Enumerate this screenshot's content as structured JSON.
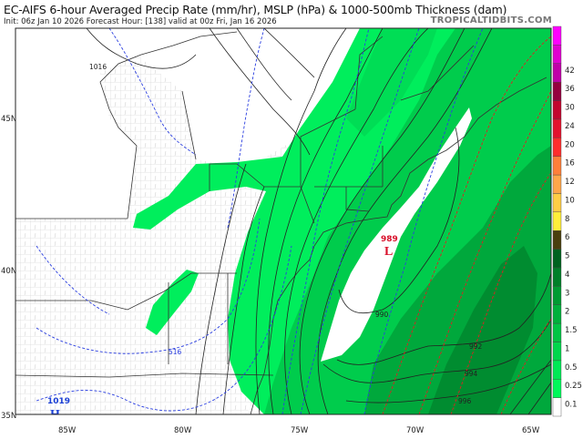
{
  "header": {
    "title": "EC-AIFS 6-hour Averaged Precip Rate (mm/hr), MSLP (hPa) & 1000-500mb Thickness (dam)",
    "subtitle": "Init: 06z Jan 10 2026   Forecast Hour: [138]   valid at 00z Fri, Jan 16 2026",
    "brand": "TROPICALTIDBITS.COM"
  },
  "axes": {
    "lat_labels": [
      "45N",
      "40N",
      "35N"
    ],
    "lon_labels": [
      "85W",
      "80W",
      "75W",
      "70W",
      "65W"
    ]
  },
  "pressure_centers": [
    {
      "type": "H",
      "value": "1019",
      "color": "#1a3fd6"
    },
    {
      "type": "L",
      "value": "989",
      "color": "#d8102a"
    }
  ],
  "isobar_labels": [
    "1016",
    "990",
    "992",
    "994",
    "996"
  ],
  "thickness_labels": [
    "516"
  ],
  "colorbar": {
    "labels": [
      "0.1",
      "0.25",
      "0.5",
      "1",
      "1.5",
      "2",
      "3",
      "4",
      "5",
      "6",
      "8",
      "10",
      "12",
      "16",
      "20",
      "24",
      "30",
      "36",
      "42"
    ],
    "colors": [
      "#ffffff",
      "#00f85a",
      "#00e855",
      "#00d64c",
      "#00c444",
      "#00b03c",
      "#009b33",
      "#007f29",
      "#00621f",
      "#4a3f0f",
      "#ffef3a",
      "#ffcd45",
      "#ffa64a",
      "#ff7f3a",
      "#ff2d2d",
      "#e3122e",
      "#c2062f",
      "#95003f",
      "#c000a8",
      "#e000d0",
      "#ff00ff"
    ]
  },
  "colors": {
    "precip_light": "#00ee5c",
    "precip_mid": "#00c94a",
    "precip_dark": "#009a36",
    "thickness_cold": "#2b3fe0",
    "thickness_warm": "#e02020"
  }
}
